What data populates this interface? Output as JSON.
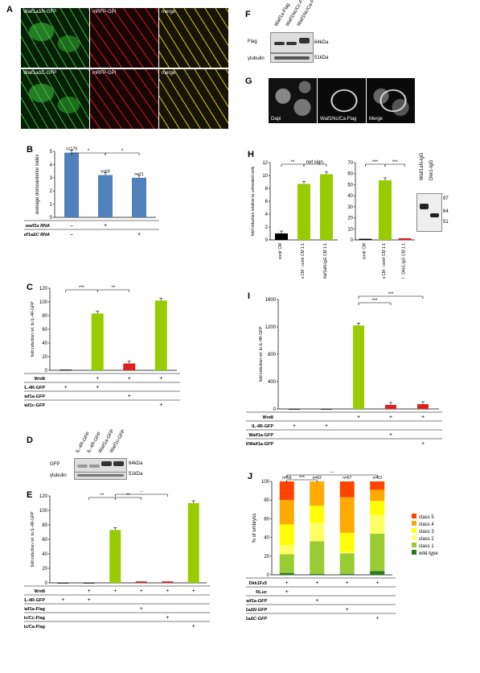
{
  "panel_labels": {
    "A": "A",
    "B": "B",
    "C": "C",
    "D": "D",
    "E": "E",
    "F": "F",
    "G": "G",
    "H": "H",
    "I": "I",
    "J": "J"
  },
  "panelA": {
    "row1": [
      "Waif1aΔN-GFP",
      "mRFP-GPI",
      "merge"
    ],
    "row2": [
      "Waif1aΔC-GFP",
      "mRFP-GPI",
      "merge"
    ]
  },
  "panelG": {
    "captions": [
      "Dapi",
      "Waif1Nc/Ca-Flag",
      "Merge"
    ]
  },
  "panelD": {
    "lanes": [
      "IL-4R-GFP",
      "IL-4R-GFP",
      "Waif1a-GFP",
      "Waif1c-GFP"
    ],
    "rows": [
      "GFP",
      "γtubulin"
    ],
    "markers": [
      "64kDa",
      "51kDa"
    ]
  },
  "panelF": {
    "lanes": [
      "Waif1a-Flag",
      "Waif1Nc/Cc-Flag",
      "Waif1Nc/Ca-Flag"
    ],
    "rows": [
      "Flag",
      "γtubulin"
    ],
    "markers": [
      "64kDa",
      "51kDa"
    ]
  },
  "panelH_blot": {
    "lanes": [
      "Waif1aN-IgG",
      "Dkk1-IgG"
    ],
    "markers": [
      "97",
      "64",
      "51"
    ]
  },
  "chart_data": [
    {
      "id": "B",
      "type": "bar",
      "ylabel": "average dorsoanterior index",
      "ylim": [
        0,
        5
      ],
      "yticks": [
        0,
        1,
        2,
        3,
        4,
        5
      ],
      "values": [
        4.9,
        3.2,
        3.0
      ],
      "bar_labels": [
        "n=179",
        "n=69",
        "n=21"
      ],
      "colors": [
        "#4f81bd",
        "#4f81bd",
        "#4f81bd"
      ],
      "significance": [
        "*",
        "*"
      ],
      "rows": [
        {
          "label": "waif1a RNA",
          "marks": [
            "–",
            "+",
            ""
          ]
        },
        {
          "label": "waif1aΔC RNA",
          "marks": [
            "–",
            "",
            "+"
          ]
        }
      ]
    },
    {
      "id": "C",
      "type": "bar",
      "ylabel": "fold induction rel. to IL-4R-GFP",
      "ylim": [
        0,
        120
      ],
      "yticks": [
        0,
        20,
        40,
        60,
        80,
        100,
        120
      ],
      "values": [
        1,
        83,
        10,
        102
      ],
      "colors": [
        "#000000",
        "#99cc00",
        "#e02020",
        "#99cc00"
      ],
      "significance": [
        "***",
        "**"
      ],
      "rows": [
        {
          "label": "Wnt8",
          "marks": [
            "",
            "+",
            "+",
            "+"
          ]
        },
        {
          "label": "IL-4R-GFP",
          "marks": [
            "+",
            "+",
            "",
            ""
          ]
        },
        {
          "label": "Waif1a-GFP",
          "marks": [
            "",
            "",
            "+",
            ""
          ]
        },
        {
          "label": "Waif1c-GFP",
          "marks": [
            "",
            "",
            "",
            "+"
          ]
        }
      ]
    },
    {
      "id": "E",
      "type": "bar",
      "ylabel": "fold induction rel. to IL-4R-GFP",
      "ylim": [
        0,
        120
      ],
      "yticks": [
        0,
        20,
        40,
        60,
        80,
        100,
        120
      ],
      "values": [
        0,
        0,
        73,
        2,
        2,
        110
      ],
      "colors": [
        "#000000",
        "#000000",
        "#99cc00",
        "#e02020",
        "#e02020",
        "#99cc00"
      ],
      "significance": [
        "**",
        "**",
        "**"
      ],
      "rows": [
        {
          "label": "Wnt8",
          "marks": [
            "",
            "+",
            "+",
            "+",
            "+",
            "+"
          ]
        },
        {
          "label": "IL-4R-GFP",
          "marks": [
            "+",
            "+",
            "",
            "",
            "",
            ""
          ]
        },
        {
          "label": "Waif1a-Flag",
          "marks": [
            "",
            "",
            "",
            "+",
            "",
            ""
          ]
        },
        {
          "label": "Waif1Nc/Cc-Flag",
          "marks": [
            "",
            "",
            "",
            "",
            "+",
            ""
          ]
        },
        {
          "label": "Waif1Nc/Ca-Flag",
          "marks": [
            "",
            "",
            "",
            "",
            "",
            "+"
          ]
        }
      ]
    },
    {
      "id": "H1",
      "type": "bar",
      "ylabel": "fold induction relative to untreated cells",
      "ylim": [
        0,
        12
      ],
      "yticks": [
        0,
        2,
        4,
        6,
        8,
        10,
        12
      ],
      "categories": [
        "contr CM",
        "Wnt3a CM : contr CM 1:1",
        "Wnt3a CM : Waif1aN-IgG CM 1:1"
      ],
      "values": [
        1,
        8.7,
        10.2
      ],
      "colors": [
        "#000000",
        "#99cc00",
        "#99cc00"
      ],
      "significance": [
        "**",
        "not sign."
      ]
    },
    {
      "id": "H2",
      "type": "bar",
      "ylim": [
        0,
        70
      ],
      "yticks": [
        0,
        10,
        20,
        30,
        40,
        50,
        60,
        70
      ],
      "categories": [
        "contr CM",
        "Wnt3a CM : contr CM 1:1",
        "Wnt3a CM : Dkk1-IgG CM 1:1"
      ],
      "values": [
        1,
        54,
        1.5
      ],
      "colors": [
        "#000000",
        "#99cc00",
        "#e02020"
      ],
      "significance": [
        "***",
        "***"
      ]
    },
    {
      "id": "I",
      "type": "bar",
      "ylabel": "fold induction rel. to IL-4R-GFP",
      "ylim": [
        0,
        1600
      ],
      "yticks": [
        0,
        400,
        800,
        1200,
        1600
      ],
      "values": [
        0,
        0,
        1220,
        60,
        70
      ],
      "colors": [
        "#000000",
        "#000000",
        "#99cc00",
        "#e02020",
        "#e02020"
      ],
      "significance": [
        "***",
        "***"
      ],
      "rows": [
        {
          "label": "Wnt8",
          "marks": [
            "",
            "",
            "+",
            "+",
            "+"
          ]
        },
        {
          "label": "IL-4R-GFP",
          "marks": [
            "+",
            "+",
            "",
            "",
            ""
          ]
        },
        {
          "label": "Waif1a-GFP",
          "marks": [
            "",
            "",
            "",
            "+",
            ""
          ]
        },
        {
          "label": "Waif1a/CD44/Waif1a-GFP",
          "marks": [
            "",
            "",
            "",
            "",
            "+"
          ]
        }
      ]
    },
    {
      "id": "J",
      "type": "bar",
      "stacked": true,
      "ylabel": "% of embryos",
      "ylim": [
        0,
        100
      ],
      "yticks": [
        0,
        20,
        40,
        60,
        80,
        100
      ],
      "bar_labels": [
        "n=59",
        "n=62",
        "n=57",
        "n=63"
      ],
      "significance": [
        "***",
        "***"
      ],
      "series": [
        {
          "name": "wild-type",
          "color": "#2a7a1a",
          "values": [
            2,
            1,
            1,
            4
          ]
        },
        {
          "name": "class 1",
          "color": "#99cc33",
          "values": [
            20,
            35,
            22,
            40
          ]
        },
        {
          "name": "class 2",
          "color": "#ffff66",
          "values": [
            10,
            20,
            2,
            20
          ]
        },
        {
          "name": "class 3",
          "color": "#ffff00",
          "values": [
            22,
            18,
            20,
            15
          ]
        },
        {
          "name": "class 4",
          "color": "#ffaa00",
          "values": [
            26,
            26,
            38,
            12
          ]
        },
        {
          "name": "class 5",
          "color": "#ff4400",
          "values": [
            20,
            0,
            17,
            9
          ]
        }
      ],
      "rows": [
        {
          "label": "Dkk1Fz5",
          "marks": [
            "+",
            "+",
            "+",
            "+"
          ]
        },
        {
          "label": "RLuc",
          "marks": [
            "+",
            "",
            "",
            ""
          ]
        },
        {
          "label": "waif1a-GFP",
          "marks": [
            "",
            "+",
            "",
            ""
          ]
        },
        {
          "label": "waif1aΔN-GFP",
          "marks": [
            "",
            "",
            "+",
            ""
          ]
        },
        {
          "label": "waif1aΔC-GFP",
          "marks": [
            "",
            "",
            "",
            "+"
          ]
        }
      ]
    }
  ]
}
